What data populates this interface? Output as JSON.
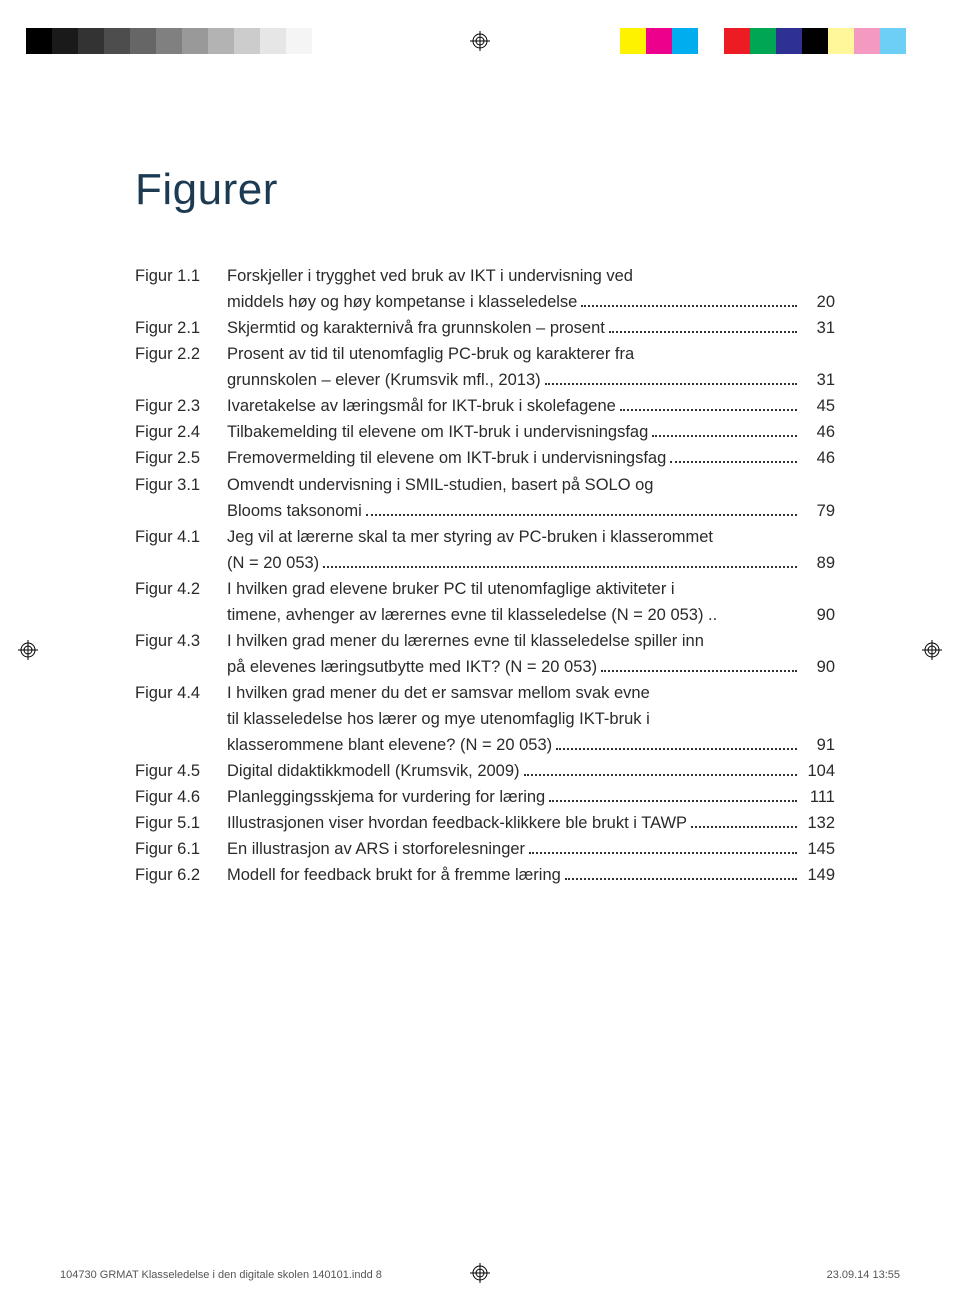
{
  "title": "Figurer",
  "print_marks": {
    "grayscale": [
      "#000000",
      "#1a1a1a",
      "#333333",
      "#4d4d4d",
      "#666666",
      "#808080",
      "#999999",
      "#b3b3b3",
      "#cccccc",
      "#e6e6e6",
      "#f5f5f5",
      "#ffffff"
    ],
    "colors_left": [
      "#fff200",
      "#ec008c",
      "#00aeef",
      "#ffffff"
    ],
    "colors_right": [
      "#ed1c24",
      "#00a651",
      "#2e3192",
      "#000000"
    ],
    "colors_pastel": [
      "#fff799",
      "#f49ac1",
      "#6dcff6",
      "#ffffff"
    ]
  },
  "entries": [
    {
      "label": "Figur 1.1",
      "lines": [
        "Forskjeller i trygghet ved bruk av IKT i undervisning ved",
        "middels høy og høy kompetanse i klasseledelse"
      ],
      "page": "20"
    },
    {
      "label": "Figur 2.1",
      "lines": [
        "Skjermtid og karakternivå fra grunnskolen – prosent"
      ],
      "page": "31"
    },
    {
      "label": "Figur 2.2",
      "lines": [
        "Prosent av tid til utenomfaglig PC-bruk og karakterer fra",
        "grunnskolen – elever (Krumsvik mfl., 2013)"
      ],
      "page": "31"
    },
    {
      "label": "Figur 2.3",
      "lines": [
        "Ivaretakelse av læringsmål for IKT-bruk i skolefagene"
      ],
      "page": "45"
    },
    {
      "label": "Figur 2.4",
      "lines": [
        "Tilbakemelding til elevene om IKT-bruk i undervisningsfag"
      ],
      "page": "46"
    },
    {
      "label": "Figur 2.5",
      "lines": [
        "Fremovermelding til elevene om IKT-bruk i undervisningsfag"
      ],
      "page": "46"
    },
    {
      "label": "Figur 3.1",
      "lines": [
        "Omvendt undervisning i SMIL-studien, basert på SOLO og",
        "Blooms taksonomi"
      ],
      "page": "79"
    },
    {
      "label": "Figur 4.1",
      "lines": [
        "Jeg vil at lærerne skal ta mer styring av PC-bruken i klasserommet",
        "(N = 20 053)"
      ],
      "page": "89"
    },
    {
      "label": "Figur 4.2",
      "lines": [
        "I hvilken grad elevene bruker PC til utenomfaglige aktiviteter i",
        "timene, avhenger av lærernes evne til klasseledelse (N = 20 053) .."
      ],
      "page": "90",
      "no_dots": true
    },
    {
      "label": "Figur 4.3",
      "lines": [
        "I hvilken grad mener du lærernes evne til klasseledelse spiller inn",
        "på elevenes læringsutbytte med IKT? (N = 20 053)"
      ],
      "page": "90"
    },
    {
      "label": "Figur 4.4",
      "lines": [
        "I hvilken grad mener du det er samsvar mellom svak evne",
        "til klasseledelse hos lærer og mye utenomfaglig IKT-bruk i",
        "klasserommene blant elevene? (N = 20 053)"
      ],
      "page": "91"
    },
    {
      "label": "Figur 4.5",
      "lines": [
        "Digital didaktikkmodell (Krumsvik, 2009)"
      ],
      "page": "104"
    },
    {
      "label": "Figur 4.6",
      "lines": [
        "Planleggingsskjema for vurdering for læring"
      ],
      "page": "111"
    },
    {
      "label": "Figur 5.1",
      "lines": [
        "Illustrasjonen viser hvordan feedback-klikkere ble brukt i TAWP"
      ],
      "page": "132"
    },
    {
      "label": "Figur 6.1",
      "lines": [
        "En illustrasjon av ARS i storforelesninger"
      ],
      "page": "145"
    },
    {
      "label": "Figur 6.2",
      "lines": [
        "Modell for feedback brukt for å fremme læring"
      ],
      "page": "149"
    }
  ],
  "footer": {
    "left": "104730 GRMAT Klasseledelse i den digitale skolen 140101.indd   8",
    "right": "23.09.14   13:55"
  }
}
